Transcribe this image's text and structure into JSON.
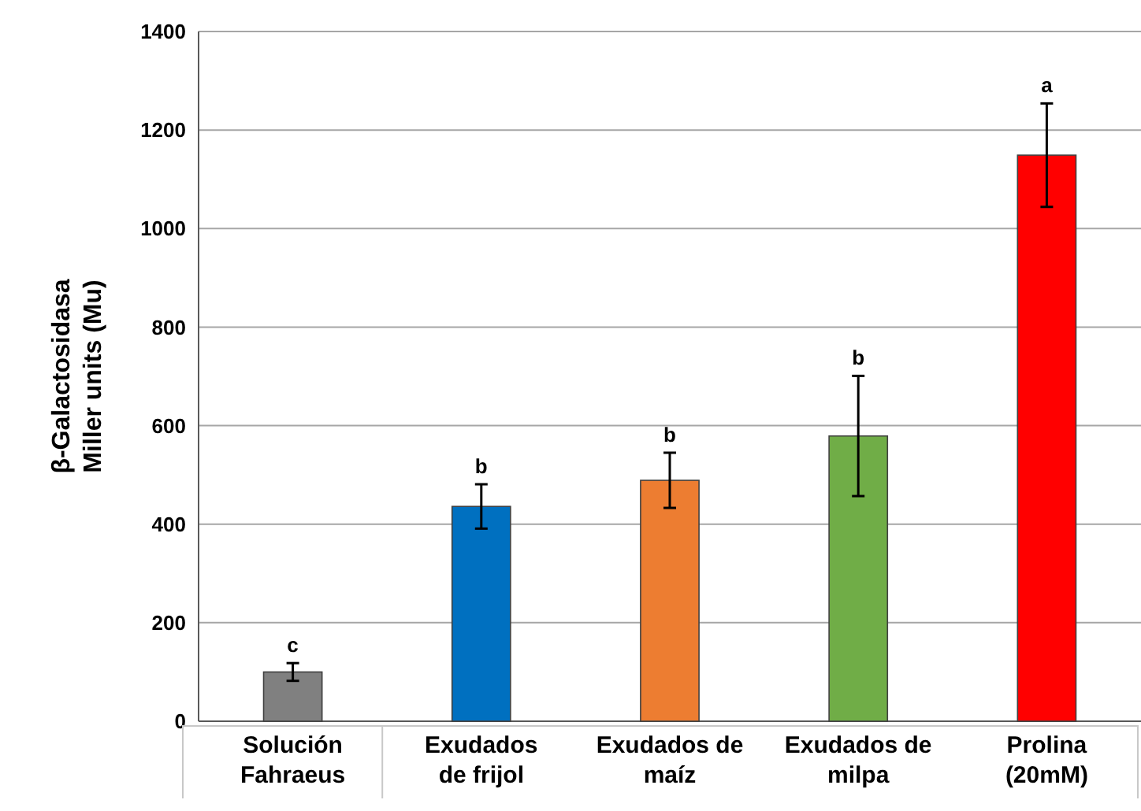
{
  "chart_data": {
    "type": "bar",
    "ylabel": "β-Galactosidasa\nMiller units (Mu)",
    "categories": [
      "Solución\nFahraeus",
      "Exudados\nde frijol",
      "Exudados de\nmaíz",
      "Exudados de\nmilpa",
      "Prolina\n(20mM)"
    ],
    "values": [
      100,
      436,
      489,
      579,
      1149
    ],
    "colors": [
      "#808080",
      "#0070c0",
      "#ed7d31",
      "#70ad47",
      "#ff0000"
    ],
    "errors": [
      18,
      45,
      56,
      122,
      105
    ],
    "ylim": [
      0,
      1400
    ],
    "yticks": [
      0,
      200,
      400,
      600,
      800,
      1000,
      1200,
      1400
    ],
    "grid": "y",
    "annotations": [
      {
        "text": "c",
        "x": "Solución\nFahraeus",
        "y": 118
      },
      {
        "text": "b",
        "x": "Exudados\nde frijol",
        "y": 481
      },
      {
        "text": "b",
        "x": "Exudados de\nmaíz",
        "y": 545
      },
      {
        "text": "b",
        "x": "Exudados de\nmilpa",
        "y": 701
      },
      {
        "text": "a",
        "x": "Prolina\n(20mM)",
        "y": 1254
      }
    ]
  }
}
